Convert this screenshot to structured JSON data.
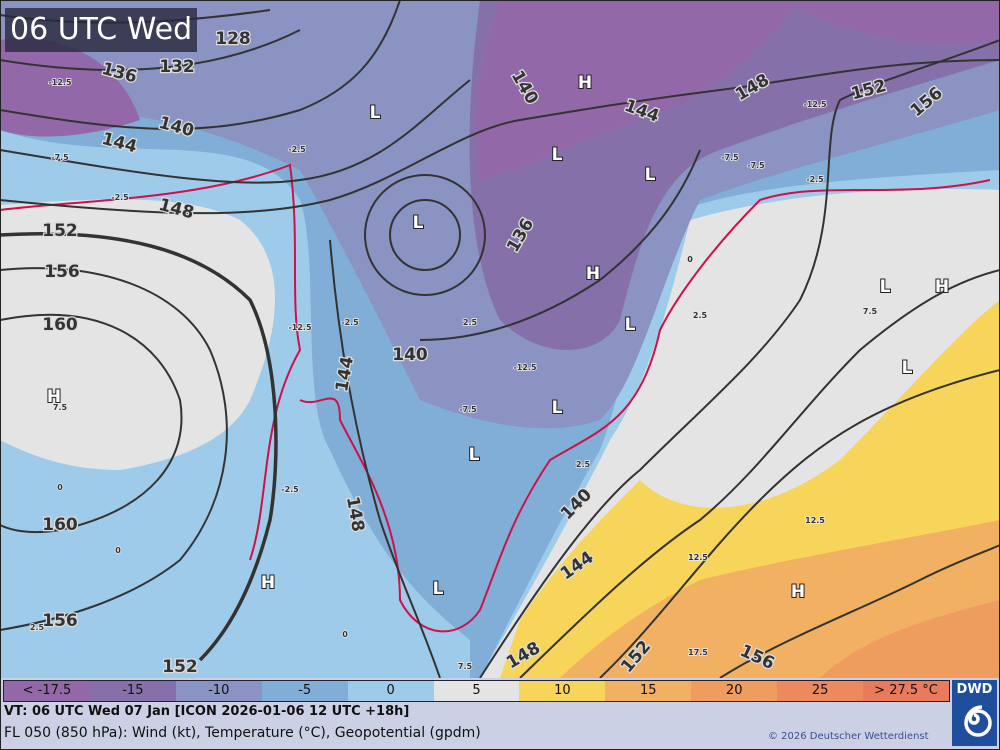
{
  "title": "06 UTC Wed",
  "legend": {
    "items": [
      {
        "label": "< -17.5",
        "color": "#9368a8"
      },
      {
        "label": "-15",
        "color": "#8670aa"
      },
      {
        "label": "-10",
        "color": "#8a93c2"
      },
      {
        "label": "-5",
        "color": "#80aed6"
      },
      {
        "label": "0",
        "color": "#9fcbea"
      },
      {
        "label": "5",
        "color": "#e4e4e4"
      },
      {
        "label": "10",
        "color": "#f6d55a"
      },
      {
        "label": "15",
        "color": "#f2b062"
      },
      {
        "label": "20",
        "color": "#ef9c5f"
      },
      {
        "label": "25",
        "color": "#ec8a5e"
      },
      {
        "label": "> 27.5 °C",
        "color": "#ea7a5c"
      }
    ]
  },
  "footer": {
    "valid_time": "VT: 06 UTC Wed  07 Jan [ICON 2026-01-06 12 UTC +18h]",
    "description": "FL 050 (850 hPa): Wind (kt), Temperature (°C), Geopotential (gpdm)",
    "copyright": "© 2026 Deutscher Wetterdienst"
  },
  "logo": {
    "text": "DWD",
    "icon": "dwd-spiral-icon"
  },
  "map": {
    "contour_labels": [
      "128",
      "136",
      "132",
      "140",
      "144",
      "148",
      "152",
      "156",
      "160",
      "160",
      "156",
      "152",
      "140",
      "144",
      "148",
      "136",
      "140",
      "144",
      "148",
      "152",
      "156",
      "140",
      "144",
      "148",
      "152",
      "156"
    ],
    "pressure_centers": [
      "L",
      "L",
      "H",
      "L",
      "L",
      "H",
      "L",
      "L",
      "L",
      "L",
      "L",
      "H",
      "H",
      "H",
      "L",
      "H",
      "H"
    ],
    "temp_labels": [
      "-12.5",
      "-7.5",
      "-2.5",
      "-2.5",
      "-7.5",
      "-12.5",
      "2.5",
      "2.5",
      "-2.5",
      "-2.5",
      "7.5",
      "2.5",
      "-12.5",
      "-7.5",
      "7.5",
      "12.5",
      "12.5",
      "17.5",
      "7.5",
      "2.5",
      "-12.5",
      "-7.5",
      "-2.5",
      "0",
      "0",
      "0",
      "0"
    ]
  }
}
